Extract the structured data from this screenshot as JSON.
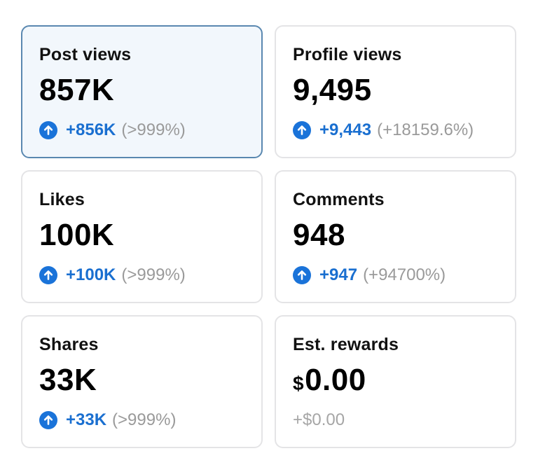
{
  "cards": [
    {
      "label": "Post views",
      "value": "857K",
      "delta": "+856K",
      "percent": "(>999%)",
      "trend": "up",
      "selected": true
    },
    {
      "label": "Profile views",
      "value": "9,495",
      "delta": "+9,443",
      "percent": "(+18159.6%)",
      "trend": "up"
    },
    {
      "label": "Likes",
      "value": "100K",
      "delta": "+100K",
      "percent": "(>999%)",
      "trend": "up"
    },
    {
      "label": "Comments",
      "value": "948",
      "delta": "+947",
      "percent": "(+94700%)",
      "trend": "up"
    },
    {
      "label": "Shares",
      "value": "33K",
      "delta": "+33K",
      "percent": "(>999%)",
      "trend": "up"
    },
    {
      "label": "Est. rewards",
      "currency": "$",
      "value": "0.00",
      "delta": "+$0.00",
      "trend": "none"
    }
  ],
  "colors": {
    "accent": "#1a73d9",
    "muted": "#9a9a9a",
    "selected_bg": "#f2f7fc",
    "selected_border": "#5a88b0"
  },
  "icons": {
    "trend_up": "arrow-up-circle-icon"
  }
}
